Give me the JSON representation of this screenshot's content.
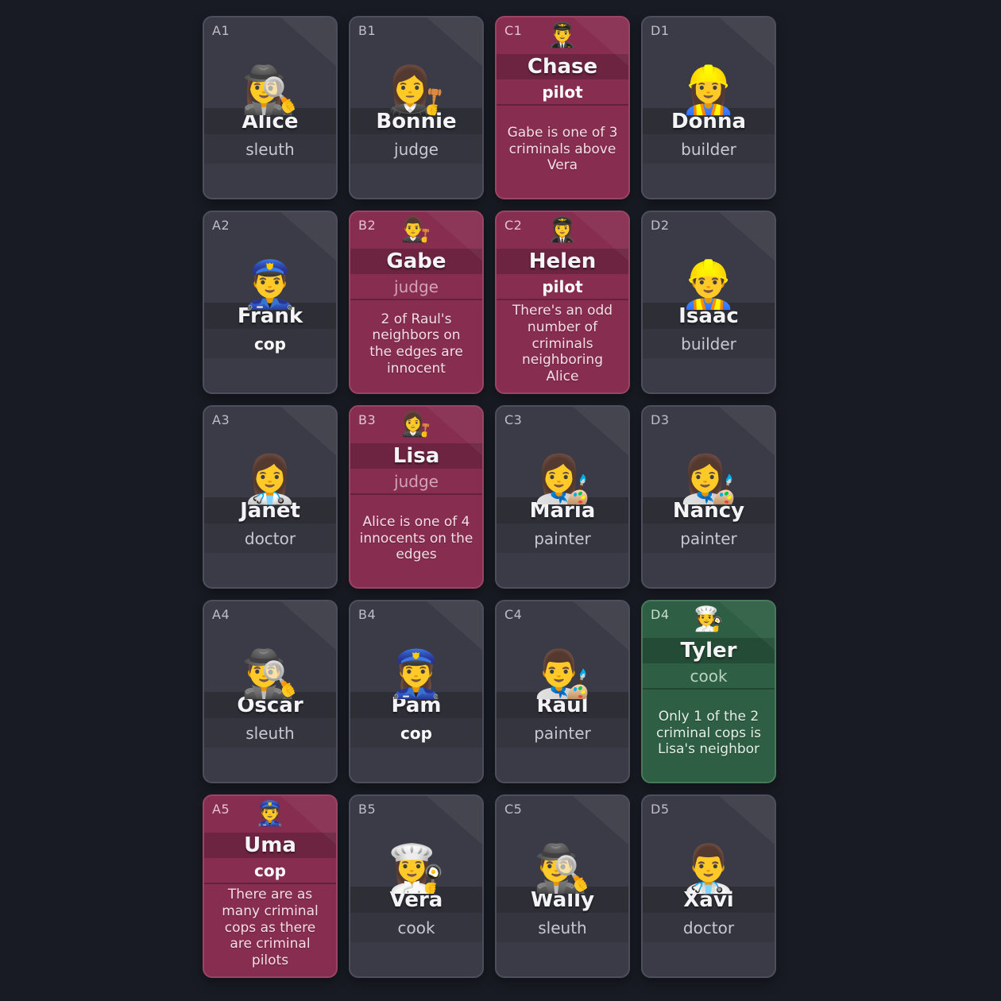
{
  "board": {
    "columns": [
      "A",
      "B",
      "C",
      "D"
    ],
    "rows": [
      "1",
      "2",
      "3",
      "4",
      "5"
    ],
    "cards": [
      {
        "cell": "A1",
        "name": "Alice",
        "profession": "sleuth",
        "emoji": "🕵️‍♀️",
        "icon": "woman-detective-emoji",
        "status": "unknown",
        "profession_highlighted": false,
        "clue": null
      },
      {
        "cell": "B1",
        "name": "Bonnie",
        "profession": "judge",
        "emoji": "👩‍⚖️",
        "icon": "woman-judge-emoji",
        "status": "unknown",
        "profession_highlighted": false,
        "clue": null
      },
      {
        "cell": "C1",
        "name": "Chase",
        "profession": "pilot",
        "emoji": "👨‍✈️",
        "icon": "man-pilot-emoji",
        "status": "criminal",
        "profession_highlighted": true,
        "clue": "Gabe is one of 3\ncriminals above\nVera"
      },
      {
        "cell": "D1",
        "name": "Donna",
        "profession": "builder",
        "emoji": "👷‍♀️",
        "icon": "woman-construction-worker-emoji",
        "status": "unknown",
        "profession_highlighted": false,
        "clue": null
      },
      {
        "cell": "A2",
        "name": "Frank",
        "profession": "cop",
        "emoji": "👮‍♂️",
        "icon": "man-police-officer-emoji",
        "status": "unknown",
        "profession_highlighted": true,
        "clue": null
      },
      {
        "cell": "B2",
        "name": "Gabe",
        "profession": "judge",
        "emoji": "👨‍⚖️",
        "icon": "man-judge-emoji",
        "status": "criminal",
        "profession_highlighted": false,
        "clue": "2 of Raul's\nneighbors on\nthe edges are\ninnocent"
      },
      {
        "cell": "C2",
        "name": "Helen",
        "profession": "pilot",
        "emoji": "👩‍✈️",
        "icon": "woman-pilot-emoji",
        "status": "criminal",
        "profession_highlighted": true,
        "clue": "There's an odd\nnumber of\ncriminals\nneighboring\nAlice"
      },
      {
        "cell": "D2",
        "name": "Isaac",
        "profession": "builder",
        "emoji": "👷‍♂️",
        "icon": "man-construction-worker-emoji",
        "status": "unknown",
        "profession_highlighted": false,
        "clue": null
      },
      {
        "cell": "A3",
        "name": "Janet",
        "profession": "doctor",
        "emoji": "👩‍⚕️",
        "icon": "woman-health-worker-emoji",
        "status": "unknown",
        "profession_highlighted": false,
        "clue": null
      },
      {
        "cell": "B3",
        "name": "Lisa",
        "profession": "judge",
        "emoji": "👩‍⚖️",
        "icon": "woman-judge-emoji",
        "status": "criminal",
        "profession_highlighted": false,
        "clue": "Alice is one of 4\ninnocents on the\nedges"
      },
      {
        "cell": "C3",
        "name": "Maria",
        "profession": "painter",
        "emoji": "👩‍🎨",
        "icon": "woman-artist-emoji",
        "status": "unknown",
        "profession_highlighted": false,
        "clue": null
      },
      {
        "cell": "D3",
        "name": "Nancy",
        "profession": "painter",
        "emoji": "👩‍🎨",
        "icon": "woman-artist-emoji",
        "status": "unknown",
        "profession_highlighted": false,
        "clue": null
      },
      {
        "cell": "A4",
        "name": "Oscar",
        "profession": "sleuth",
        "emoji": "🕵️‍♂️",
        "icon": "man-detective-emoji",
        "status": "unknown",
        "profession_highlighted": false,
        "clue": null
      },
      {
        "cell": "B4",
        "name": "Pam",
        "profession": "cop",
        "emoji": "👮‍♀️",
        "icon": "woman-police-officer-emoji",
        "status": "unknown",
        "profession_highlighted": true,
        "clue": null
      },
      {
        "cell": "C4",
        "name": "Raul",
        "profession": "painter",
        "emoji": "👨‍🎨",
        "icon": "man-artist-emoji",
        "status": "unknown",
        "profession_highlighted": false,
        "clue": null
      },
      {
        "cell": "D4",
        "name": "Tyler",
        "profession": "cook",
        "emoji": "🧑‍🍳",
        "icon": "cook-emoji",
        "status": "innocent",
        "profession_highlighted": false,
        "clue": "Only 1 of the 2\ncriminal cops is\nLisa's neighbor"
      },
      {
        "cell": "A5",
        "name": "Uma",
        "profession": "cop",
        "emoji": "👮",
        "icon": "police-officer-emoji",
        "status": "criminal",
        "profession_highlighted": true,
        "clue": "There are as\nmany criminal\ncops as there\nare criminal\npilots"
      },
      {
        "cell": "B5",
        "name": "Vera",
        "profession": "cook",
        "emoji": "👩‍🍳",
        "icon": "woman-cook-emoji",
        "status": "unknown",
        "profession_highlighted": false,
        "clue": null
      },
      {
        "cell": "C5",
        "name": "Wally",
        "profession": "sleuth",
        "emoji": "🕵️‍♂️",
        "icon": "man-detective-emoji",
        "status": "unknown",
        "profession_highlighted": false,
        "clue": null
      },
      {
        "cell": "D5",
        "name": "Xavi",
        "profession": "doctor",
        "emoji": "👨‍⚕️",
        "icon": "man-health-worker-emoji",
        "status": "unknown",
        "profession_highlighted": false,
        "clue": null
      }
    ]
  },
  "colors": {
    "background": "#191b24",
    "card_unknown_bg": "#3a3b46",
    "card_unknown_border": "#4d4f5c",
    "card_criminal_bg": "#872d50",
    "card_criminal_border": "#9c4465",
    "card_innocent_bg": "#2e5e43",
    "card_innocent_border": "#477a5b",
    "name_text": "#f4f3f6",
    "muted_profession_text": "#c7c8d0",
    "clue_text_criminal": "#f4dde3",
    "clue_text_innocent": "#e6efe8"
  }
}
